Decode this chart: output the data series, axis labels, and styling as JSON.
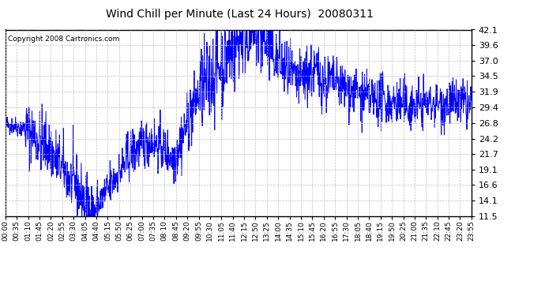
{
  "title": "Wind Chill per Minute (Last 24 Hours)  20080311",
  "copyright": "Copyright 2008 Cartronics.com",
  "line_color": "#0000FF",
  "background_color": "#FFFFFF",
  "plot_bg_color": "#FFFFFF",
  "grid_color": "#C0C0C0",
  "yticks": [
    11.5,
    14.1,
    16.6,
    19.1,
    21.7,
    24.2,
    26.8,
    29.4,
    31.9,
    34.5,
    37.0,
    39.6,
    42.1
  ],
  "ylim": [
    11.5,
    42.1
  ],
  "xtick_labels": [
    "00:00",
    "00:35",
    "01:10",
    "01:45",
    "02:20",
    "02:55",
    "03:30",
    "04:05",
    "04:40",
    "05:15",
    "05:50",
    "06:25",
    "07:00",
    "07:35",
    "08:10",
    "08:45",
    "09:20",
    "09:55",
    "10:30",
    "11:05",
    "11:40",
    "12:15",
    "12:50",
    "13:25",
    "14:00",
    "14:35",
    "15:10",
    "15:45",
    "16:20",
    "16:55",
    "17:30",
    "18:05",
    "18:40",
    "19:15",
    "19:50",
    "20:25",
    "21:00",
    "21:35",
    "22:10",
    "22:45",
    "23:20",
    "23:55"
  ],
  "seed": 42
}
